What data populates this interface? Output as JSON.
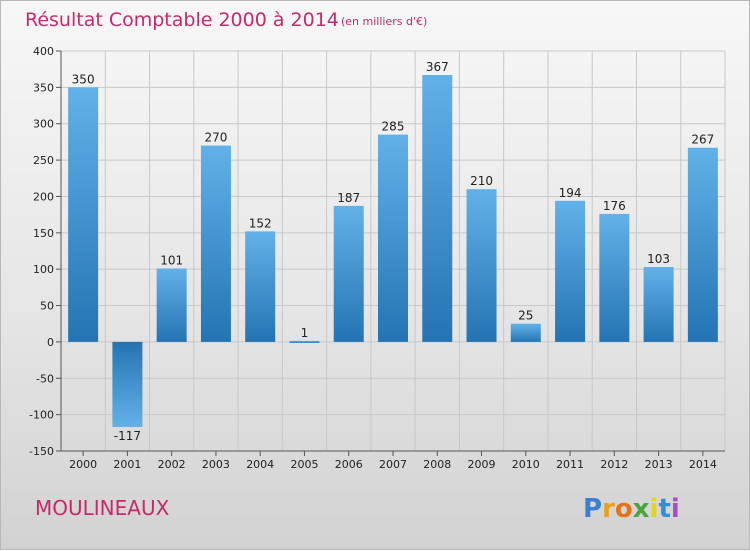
{
  "chart_data": {
    "type": "bar",
    "title": "Résultat Comptable 2000 à 2014",
    "subtitle": "(en milliers d'€)",
    "categories": [
      "2000",
      "2001",
      "2002",
      "2003",
      "2004",
      "2005",
      "2006",
      "2007",
      "2008",
      "2009",
      "2010",
      "2011",
      "2012",
      "2013",
      "2014"
    ],
    "values": [
      350,
      -117,
      101,
      270,
      152,
      1,
      187,
      285,
      367,
      210,
      25,
      194,
      176,
      103,
      267
    ],
    "ylim": [
      -150,
      400
    ],
    "yticks": [
      400,
      350,
      300,
      250,
      200,
      150,
      100,
      50,
      0,
      -50,
      -100,
      -150
    ],
    "grid": true,
    "xlabel": "",
    "ylabel": ""
  },
  "location": "MOULINEAUX",
  "brand": {
    "letters": [
      "P",
      "r",
      "o",
      "x",
      "i",
      "t",
      "i"
    ],
    "colors": [
      "#3b7fd1",
      "#e9a21d",
      "#e57319",
      "#4aa63c",
      "#e2d51c",
      "#2f8fd8",
      "#a84fc4"
    ]
  },
  "colors": {
    "title": "#c62a6a",
    "bar_light": "#5dade6",
    "bar_dark": "#2678b8",
    "grid": "#c8c8c8"
  }
}
